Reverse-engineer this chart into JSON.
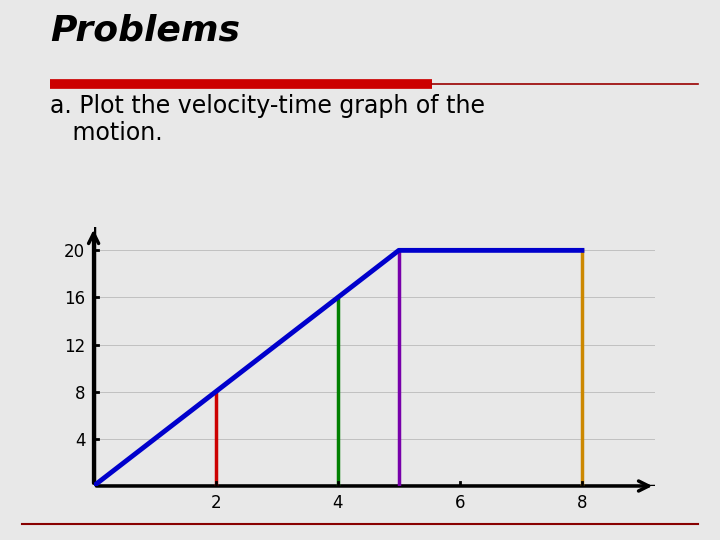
{
  "title": "Problems",
  "subtitle_line1": "a. Plot the velocity-time graph of the",
  "subtitle_line2": "   motion.",
  "background_color": "#e8e8e8",
  "plot_bg_color": "#e8e8e8",
  "blue_line_x": [
    0,
    5,
    8
  ],
  "blue_line_y": [
    0,
    20,
    20
  ],
  "blue_color": "#0000cc",
  "blue_linewidth": 3.5,
  "red_line_x": [
    2,
    2
  ],
  "red_line_y": [
    0,
    8
  ],
  "red_color": "#cc0000",
  "red_linewidth": 2.5,
  "green_line_x": [
    4,
    4
  ],
  "green_line_y": [
    0,
    16
  ],
  "green_color": "#008000",
  "green_linewidth": 2.5,
  "purple_line_x": [
    5,
    5
  ],
  "purple_line_y": [
    0,
    20
  ],
  "purple_color": "#7700aa",
  "purple_linewidth": 2.5,
  "orange_line_x": [
    8,
    8
  ],
  "orange_line_y": [
    0,
    20
  ],
  "orange_color": "#cc8800",
  "orange_linewidth": 2.5,
  "xticks": [
    2,
    4,
    6,
    8
  ],
  "yticks": [
    4,
    8,
    12,
    16,
    20
  ],
  "xlim": [
    0,
    9.2
  ],
  "ylim": [
    0,
    22
  ],
  "axis_linewidth": 2.5,
  "tick_fontsize": 12,
  "title_fontsize": 26,
  "subtitle_fontsize": 17,
  "red_bar_color": "#cc0000",
  "thin_line_color": "#990000"
}
